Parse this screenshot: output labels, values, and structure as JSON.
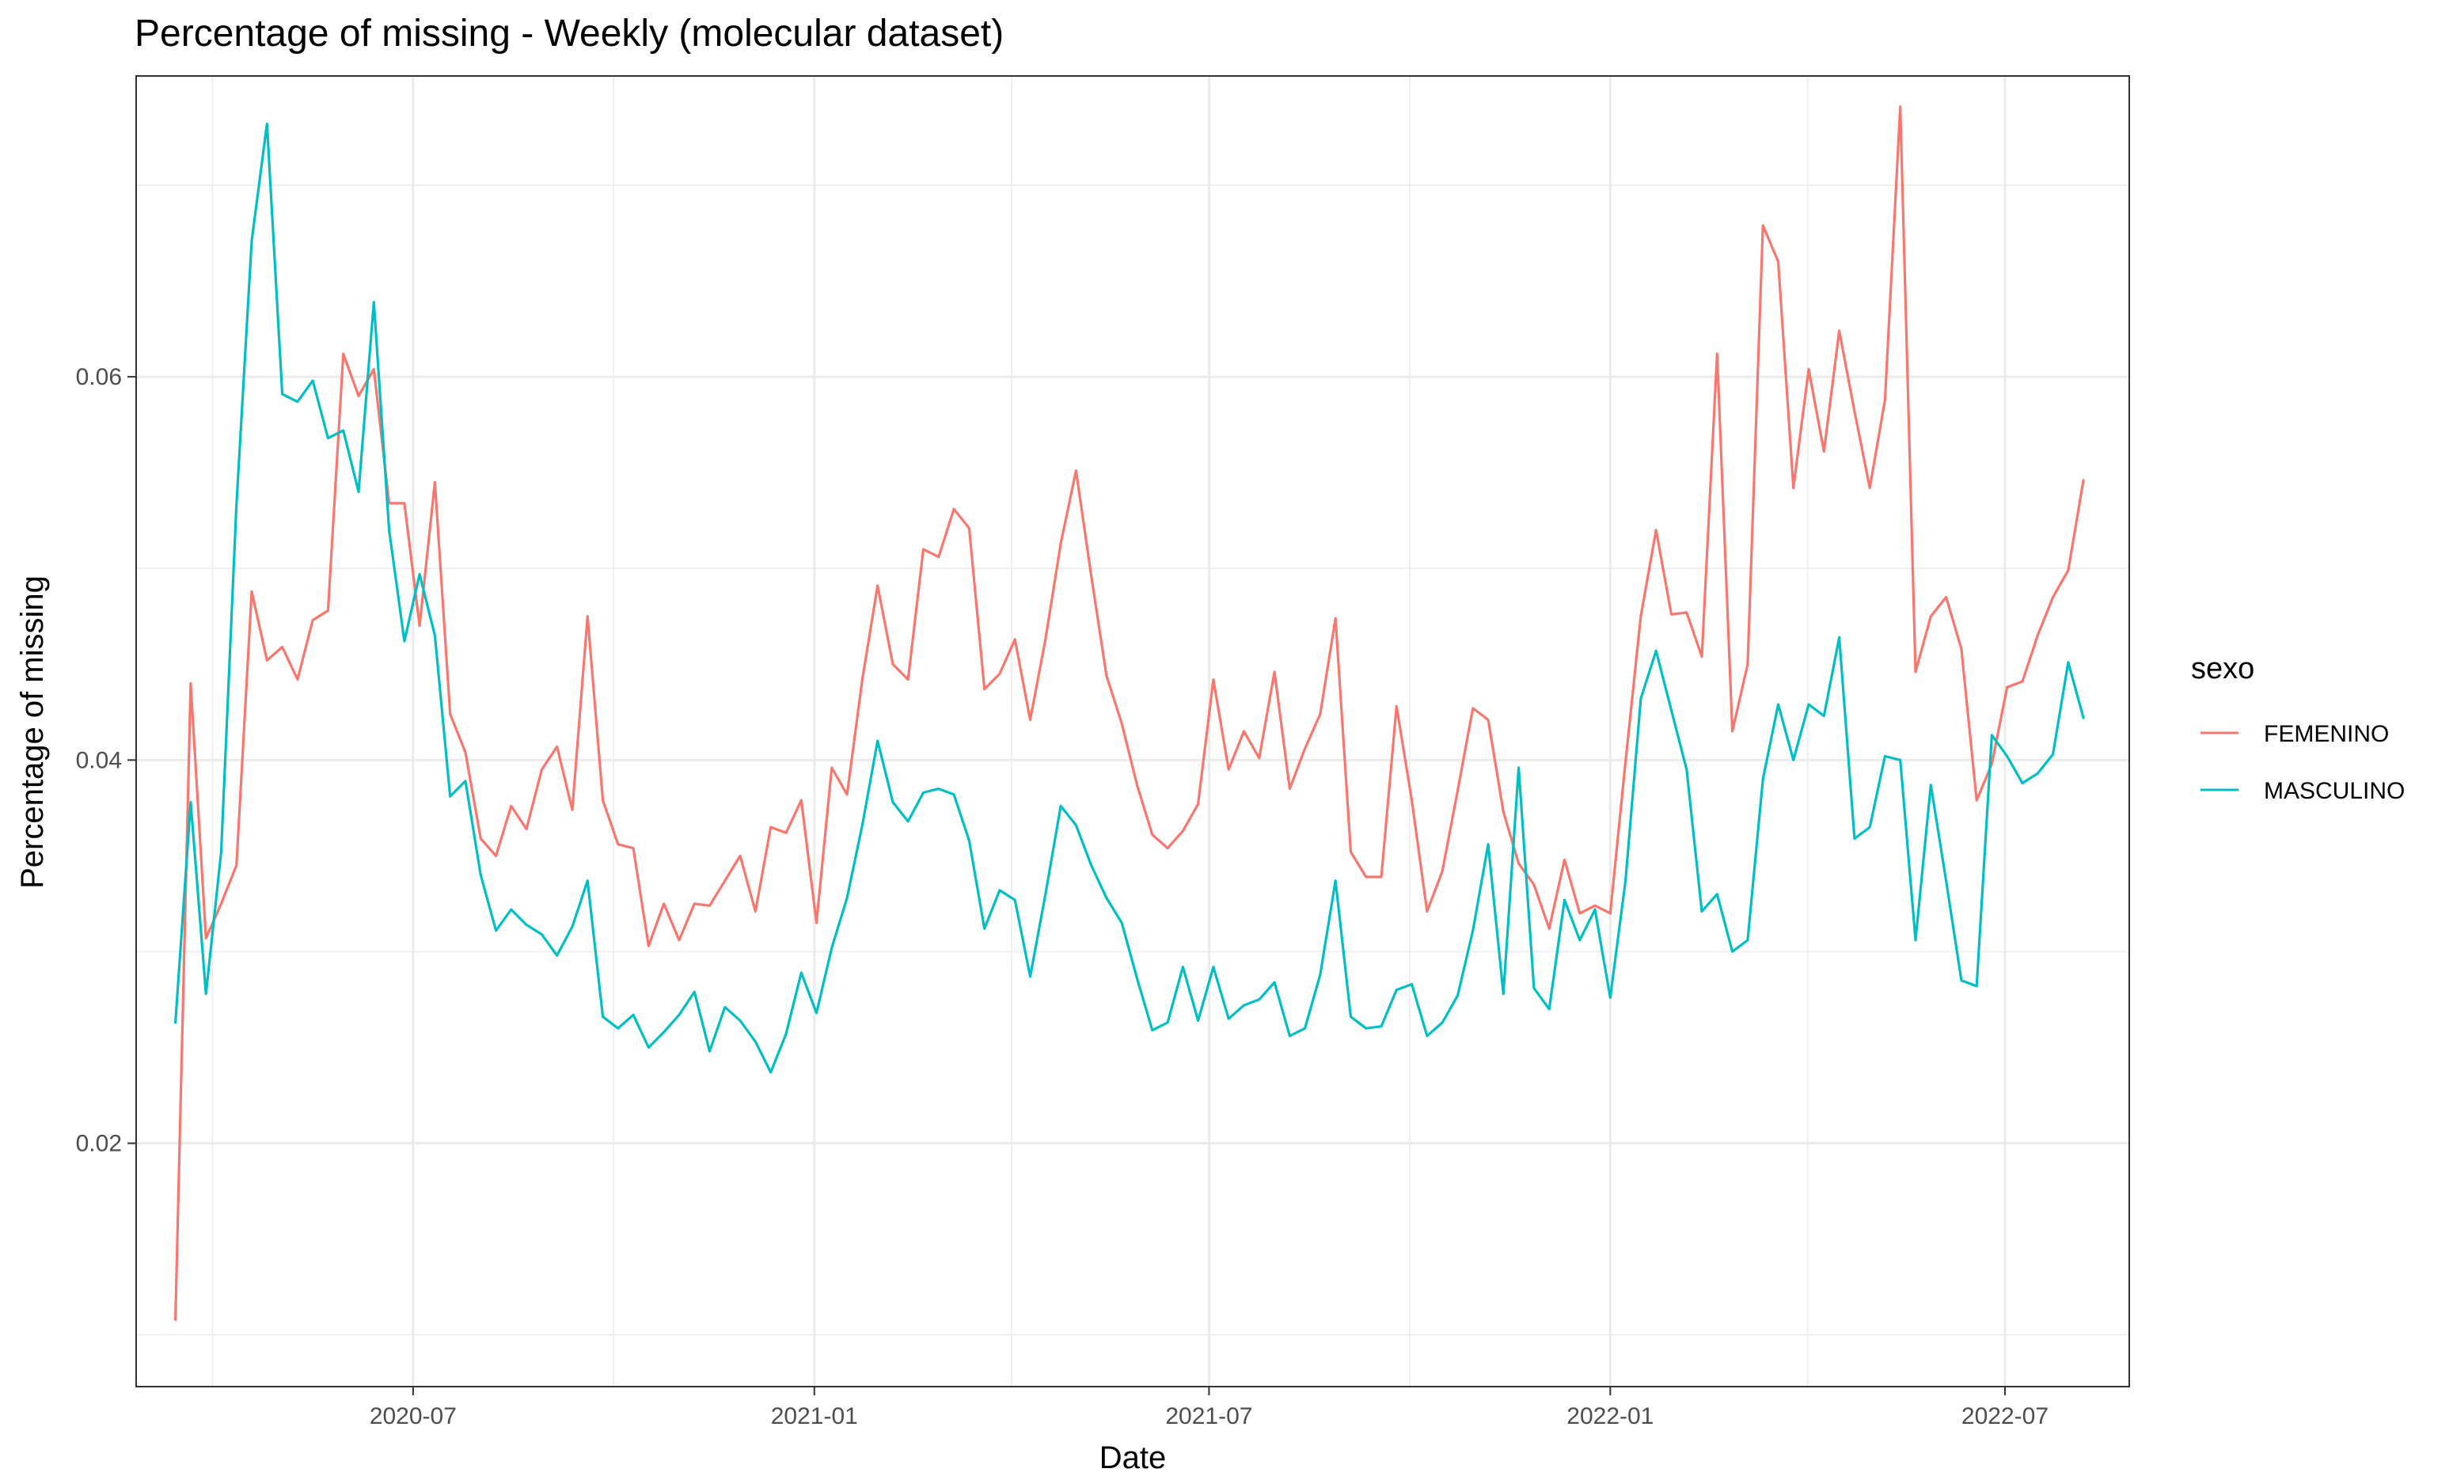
{
  "chart_data": {
    "type": "line",
    "title": "Percentage of missing - Weekly (molecular dataset)",
    "xlabel": "Date",
    "ylabel": "Percentage of missing",
    "x_ticks": [
      "2020-07",
      "2021-01",
      "2021-07",
      "2022-01",
      "2022-07"
    ],
    "y_ticks": [
      "0.02",
      "0.04",
      "0.06"
    ],
    "x_range": [
      "2020-02-25",
      "2022-08-27"
    ],
    "ylim": [
      0.0073,
      0.0757
    ],
    "grid": true,
    "legend": {
      "title": "sexo",
      "position": "right"
    },
    "start_week": "2020-03-14",
    "week_step_days": 7,
    "series": [
      {
        "name": "FEMENINO",
        "color": "#F8766D",
        "values": [
          0.0108,
          0.044,
          0.0307,
          0.0325,
          0.0345,
          0.0488,
          0.0452,
          0.0459,
          0.0442,
          0.0473,
          0.0478,
          0.0612,
          0.059,
          0.0604,
          0.0534,
          0.0534,
          0.047,
          0.0545,
          0.0424,
          0.0404,
          0.0359,
          0.035,
          0.0376,
          0.0364,
          0.0395,
          0.0407,
          0.0374,
          0.0475,
          0.0379,
          0.0356,
          0.0354,
          0.0303,
          0.0325,
          0.0306,
          0.0325,
          0.0324,
          0.0337,
          0.035,
          0.0321,
          0.0365,
          0.0362,
          0.0379,
          0.0315,
          0.0396,
          0.0382,
          0.0442,
          0.0491,
          0.045,
          0.0442,
          0.051,
          0.0506,
          0.0531,
          0.0521,
          0.0437,
          0.0445,
          0.0463,
          0.0421,
          0.0463,
          0.0513,
          0.0551,
          0.0496,
          0.0444,
          0.0419,
          0.0387,
          0.0361,
          0.0354,
          0.0363,
          0.0377,
          0.0442,
          0.0395,
          0.0415,
          0.0401,
          0.0446,
          0.0385,
          0.0406,
          0.0424,
          0.0474,
          0.0352,
          0.0339,
          0.0339,
          0.0428,
          0.0379,
          0.0321,
          0.0342,
          0.0384,
          0.0427,
          0.0421,
          0.0373,
          0.0346,
          0.0335,
          0.0312,
          0.0348,
          0.032,
          0.0324,
          0.032,
          0.0399,
          0.0475,
          0.052,
          0.0476,
          0.0477,
          0.0454,
          0.0612,
          0.0415,
          0.045,
          0.0679,
          0.066,
          0.0542,
          0.0604,
          0.0561,
          0.0624,
          0.0582,
          0.0542,
          0.0588,
          0.0741,
          0.0446,
          0.0475,
          0.0485,
          0.0458,
          0.0379,
          0.0398,
          0.0438,
          0.0441,
          0.0465,
          0.0485,
          0.0499,
          0.0546
        ]
      },
      {
        "name": "MASCULINO",
        "color": "#00BFC4",
        "values": [
          0.0263,
          0.0378,
          0.0278,
          0.0352,
          0.0533,
          0.0671,
          0.0732,
          0.0591,
          0.0587,
          0.0598,
          0.0568,
          0.0572,
          0.054,
          0.0639,
          0.052,
          0.0462,
          0.0497,
          0.0465,
          0.0381,
          0.0389,
          0.034,
          0.0311,
          0.0322,
          0.0314,
          0.0309,
          0.0298,
          0.0313,
          0.0337,
          0.0266,
          0.026,
          0.0267,
          0.025,
          0.0258,
          0.0267,
          0.0279,
          0.0248,
          0.0271,
          0.0264,
          0.0253,
          0.0237,
          0.0257,
          0.0289,
          0.0268,
          0.0302,
          0.0328,
          0.0366,
          0.041,
          0.0378,
          0.0368,
          0.0383,
          0.0385,
          0.0382,
          0.0358,
          0.0312,
          0.0332,
          0.0327,
          0.0287,
          0.033,
          0.0376,
          0.0366,
          0.0345,
          0.0328,
          0.0315,
          0.0286,
          0.0259,
          0.0263,
          0.0292,
          0.0264,
          0.0292,
          0.0265,
          0.0272,
          0.0275,
          0.0284,
          0.0256,
          0.026,
          0.0288,
          0.0337,
          0.0266,
          0.026,
          0.0261,
          0.028,
          0.0283,
          0.0256,
          0.0263,
          0.0277,
          0.0311,
          0.0356,
          0.0278,
          0.0396,
          0.0281,
          0.027,
          0.0327,
          0.0306,
          0.0322,
          0.0276,
          0.0337,
          0.0432,
          0.0457,
          0.0426,
          0.0395,
          0.0321,
          0.033,
          0.03,
          0.0306,
          0.039,
          0.0429,
          0.04,
          0.0429,
          0.0423,
          0.0464,
          0.0359,
          0.0365,
          0.0402,
          0.04,
          0.0306,
          0.0387,
          0.0337,
          0.0285,
          0.0282,
          0.0413,
          0.0402,
          0.0388,
          0.0393,
          0.0403,
          0.0451,
          0.0422
        ]
      }
    ]
  }
}
